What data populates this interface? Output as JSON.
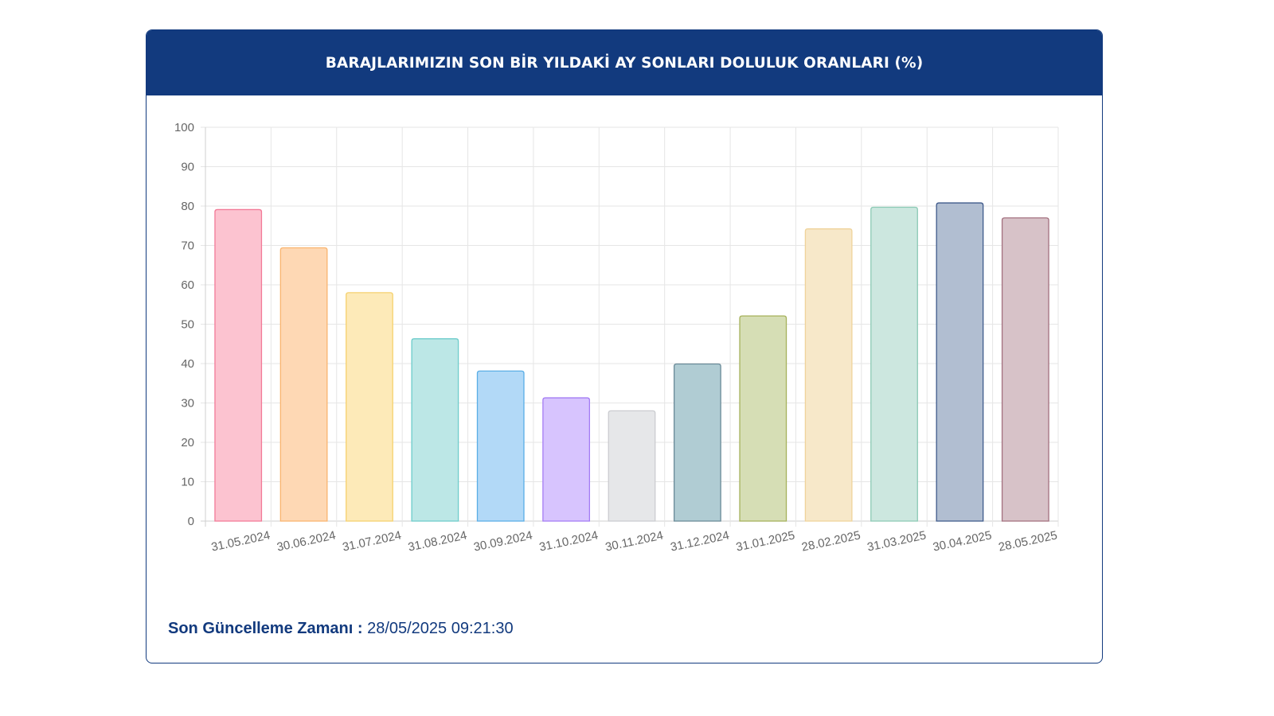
{
  "panel": {
    "title": "BARAJLARIMIZIN SON BİR YILDAKİ AY SONLARI DOLULUK ORANLARI (%)",
    "header_color": "#123a7e"
  },
  "footer": {
    "update_label": "Son Güncelleme Zamanı :",
    "update_value": "28/05/2025 09:21:30"
  },
  "chart_data": {
    "type": "bar",
    "title": "BARAJLARIMIZIN SON BİR YILDAKİ AY SONLARI DOLULUK ORANLARI (%)",
    "xlabel": "",
    "ylabel": "",
    "ylim": [
      0,
      100
    ],
    "yticks": [
      0,
      10,
      20,
      30,
      40,
      50,
      60,
      70,
      80,
      90,
      100
    ],
    "grid": true,
    "legend": "none",
    "categories": [
      "31.05.2024",
      "30.06.2024",
      "31.07.2024",
      "31.08.2024",
      "30.09.2024",
      "31.10.2024",
      "30.11.2024",
      "31.12.2024",
      "31.01.2025",
      "28.02.2025",
      "31.03.2025",
      "30.04.2025",
      "28.05.2025"
    ],
    "values": [
      79.1,
      69.4,
      58.0,
      46.3,
      38.1,
      31.3,
      28.0,
      39.9,
      52.1,
      74.2,
      79.7,
      80.8,
      77.0
    ],
    "bar_fill_colors": [
      "#fcc3d0",
      "#fed8b4",
      "#fdeab8",
      "#bce7e6",
      "#b2d9f7",
      "#d7c4fe",
      "#e6e7e9",
      "#b0ccd3",
      "#d6deb5",
      "#f7e8c9",
      "#cce7df",
      "#b1bed1",
      "#d7c2c8"
    ],
    "bar_border_colors": [
      "#f27a97",
      "#f9b46e",
      "#f5d16e",
      "#6dcccb",
      "#5aaee6",
      "#a47cf4",
      "#cbccd0",
      "#6a8a98",
      "#a5b15a",
      "#efd39b",
      "#8ccab5",
      "#3f5a8b",
      "#a3707f"
    ]
  }
}
